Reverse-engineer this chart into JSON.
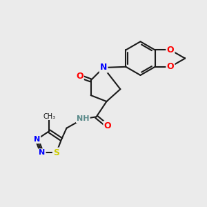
{
  "bg_color": "#ebebeb",
  "bond_color": "#1a1a1a",
  "bond_width": 1.5,
  "atom_colors": {
    "O": "#ff0000",
    "N": "#0000ff",
    "S": "#cccc00",
    "C": "#1a1a1a",
    "H": "#5a8a8a"
  },
  "font_size": 9,
  "font_size_small": 8
}
